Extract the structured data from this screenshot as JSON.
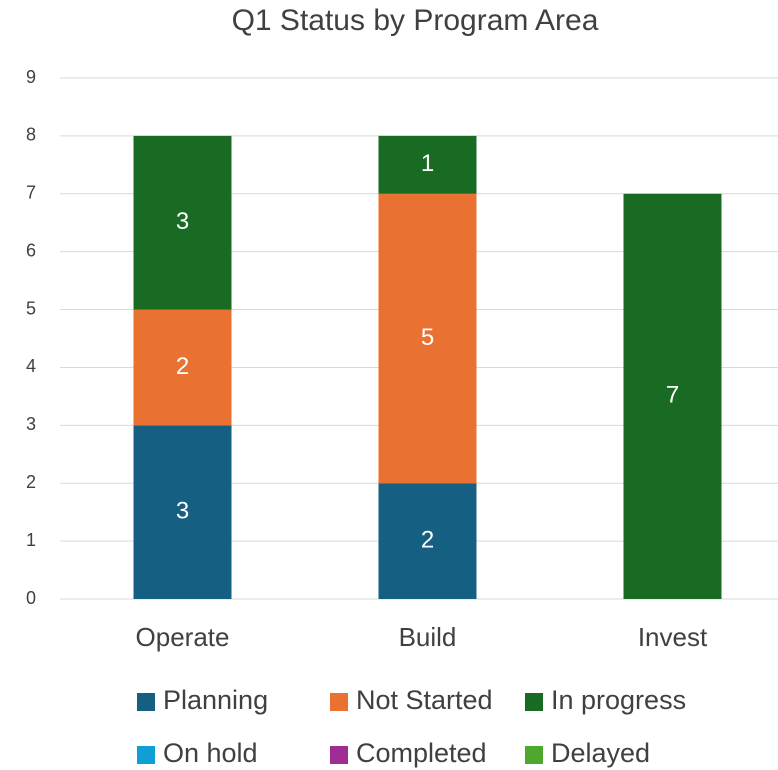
{
  "chart_data": {
    "type": "stacked_bar",
    "title": "Q1 Status by Program Area",
    "categories": [
      "Operate",
      "Build",
      "Invest"
    ],
    "series": [
      {
        "name": "Planning",
        "color": "#156082",
        "values": [
          3,
          2,
          0
        ]
      },
      {
        "name": "Not Started",
        "color": "#e97132",
        "values": [
          2,
          5,
          0
        ]
      },
      {
        "name": "In progress",
        "color": "#196b24",
        "values": [
          3,
          1,
          7
        ]
      },
      {
        "name": "On hold",
        "color": "#0f9ed5",
        "values": [
          0,
          0,
          0
        ]
      },
      {
        "name": "Completed",
        "color": "#a02b93",
        "values": [
          0,
          0,
          0
        ]
      },
      {
        "name": "Delayed",
        "color": "#4ea72e",
        "values": [
          0,
          0,
          0
        ]
      }
    ],
    "ylim": [
      0,
      9
    ],
    "yticks": [
      0,
      1,
      2,
      3,
      4,
      5,
      6,
      7,
      8,
      9
    ],
    "grid": true,
    "legend": "bottom"
  }
}
